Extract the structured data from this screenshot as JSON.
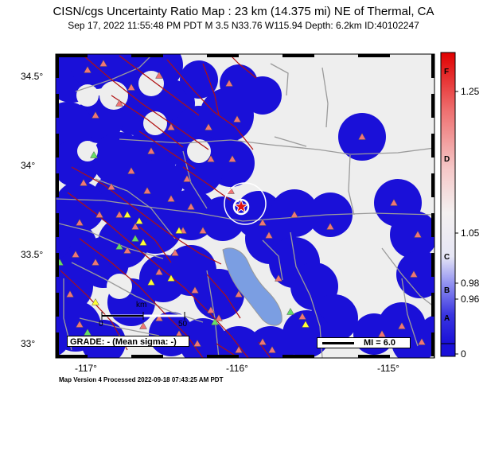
{
  "header": {
    "title": "CISN/cgs Uncertainty Ratio Map : 23 km (14.375 mi) NE of Thermal, CA",
    "subtitle": "Sep 17, 2022 11:55:48 PM PDT   M 3.5   N33.76 W115.94   Depth: 6.2km   ID:40102247"
  },
  "map": {
    "lat_labels": [
      "34.5°",
      "34°",
      "33.5°",
      "33°"
    ],
    "lon_labels": [
      "-117°",
      "-116°",
      "-115°"
    ],
    "epicenter": {
      "lat": 33.76,
      "lon": -115.94
    },
    "grade_label": "GRADE: - (Mean sigma: -)",
    "mi_legend": "MI = 6.0",
    "scale_bar": {
      "unit": "km",
      "ticks": [
        "0",
        "50"
      ]
    },
    "icons": [
      "epicenter-star-icon",
      "station-triangle-icon",
      "fault-line-icon"
    ],
    "colors": {
      "uncertainty_blue": "#1a10d8",
      "background_gray": "#eeeeee",
      "lake": "#7b9ee2",
      "faults": "#b01010",
      "roads": "#9b9b9b",
      "station_red": "#f07575",
      "station_yellow": "#ffff33",
      "station_green": "#66dd66",
      "epicenter": "#e01010"
    }
  },
  "colorbar": {
    "letters": [
      "F",
      "D",
      "C",
      "B",
      "A"
    ],
    "values": [
      "1.25",
      "1.05",
      "0.98",
      "0.96",
      "0"
    ]
  },
  "footer": {
    "text": "Map Version 4 Processed 2022-09-18 07:43:25 AM PDT"
  }
}
